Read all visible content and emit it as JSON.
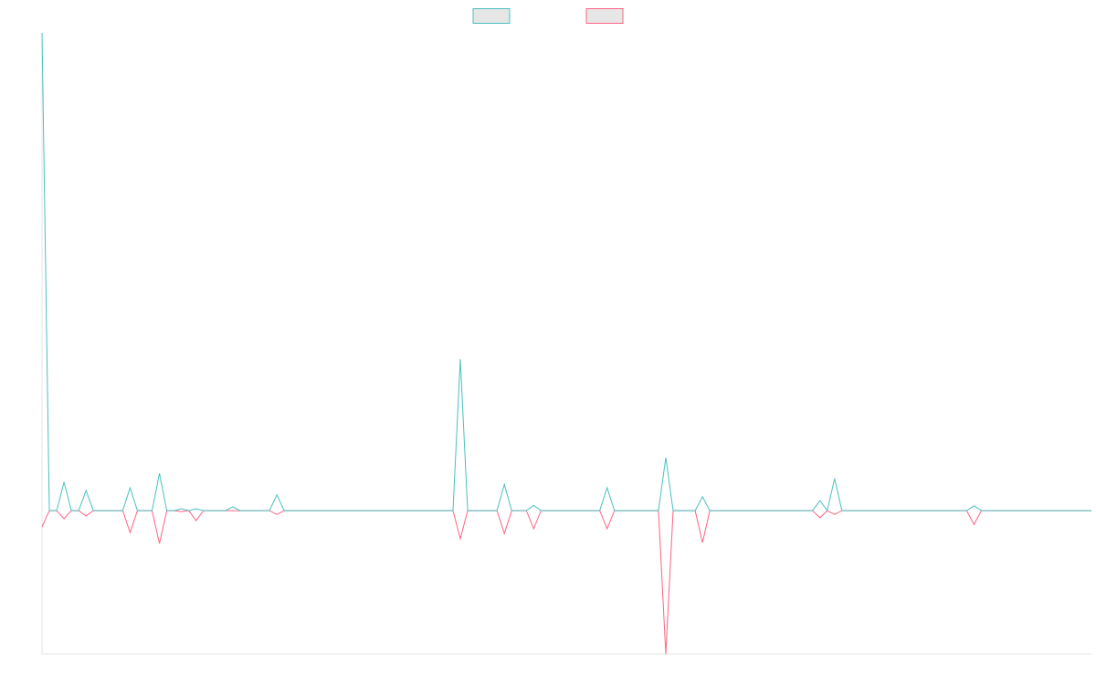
{
  "chart_data": {
    "type": "line",
    "categories": [
      null,
      null,
      null,
      null,
      null,
      null,
      null,
      null,
      null,
      null,
      null,
      null,
      null,
      null,
      null,
      null,
      null,
      null,
      null,
      null,
      null,
      null,
      null,
      null,
      null,
      null,
      null,
      null,
      null,
      null,
      null,
      null,
      null,
      null,
      null,
      null,
      null,
      null,
      null,
      null,
      null,
      null,
      null,
      null,
      null,
      null,
      null,
      null,
      null,
      null,
      null,
      null,
      null,
      null,
      null,
      null,
      null,
      null,
      null,
      null,
      null,
      null,
      null,
      null,
      null,
      null,
      null,
      null,
      null,
      null,
      null,
      null,
      null,
      null,
      null,
      null,
      null,
      null,
      null,
      null,
      null,
      null,
      null,
      null,
      null,
      null,
      null,
      null,
      null,
      null,
      null,
      null,
      null,
      null,
      null,
      null,
      null,
      null,
      null,
      null,
      null,
      null,
      null,
      null,
      null,
      null,
      null,
      null,
      null,
      null,
      null,
      null,
      null,
      null,
      null,
      null,
      null,
      null,
      null,
      null,
      null,
      null,
      null,
      null,
      null,
      null,
      null,
      null,
      null,
      null,
      null,
      null,
      null,
      null,
      null,
      null,
      null,
      null,
      null,
      null,
      null,
      null,
      null,
      null
    ],
    "series": [
      {
        "color": "#4bc0c0",
        "values": [
          100,
          0,
          0,
          6,
          0,
          0,
          4.2,
          0,
          0,
          0,
          0,
          0,
          4.8,
          0,
          0,
          0,
          7.8,
          0,
          0,
          0.4,
          0,
          0.4,
          0,
          0,
          0,
          0,
          0.8,
          0,
          0,
          0,
          0,
          0,
          3.3,
          0,
          0,
          0,
          0,
          0,
          0,
          0,
          0,
          0,
          0,
          0,
          0,
          0,
          0,
          0,
          0,
          0,
          0,
          0,
          0,
          0,
          0,
          0,
          0,
          31.7,
          0,
          0,
          0,
          0,
          0,
          5.5,
          0,
          0,
          0,
          1.1,
          0,
          0,
          0,
          0,
          0,
          0,
          0,
          0,
          0,
          4.8,
          0,
          0,
          0,
          0,
          0,
          0,
          0,
          11.1,
          0,
          0,
          0,
          0,
          2.9,
          0,
          0,
          0,
          0,
          0,
          0,
          0,
          0,
          0,
          0,
          0,
          0,
          0,
          0,
          0,
          2.1,
          0,
          6.7,
          0,
          0,
          0,
          0,
          0,
          0,
          0,
          0,
          0,
          0,
          0,
          0,
          0,
          0,
          0,
          0,
          0,
          0,
          1,
          0,
          0,
          0,
          0,
          0,
          0,
          0,
          0,
          0,
          0,
          0,
          0,
          0,
          0,
          0,
          0
        ]
      },
      {
        "color": "#ff6384",
        "values": [
          -3.4,
          0,
          0,
          -1.7,
          0,
          0,
          -1.1,
          0,
          0,
          0,
          0,
          0,
          -4.6,
          0,
          0,
          0,
          -6.9,
          0,
          0,
          -0.2,
          0,
          -2.1,
          0,
          0,
          0,
          0,
          0,
          0,
          0,
          0,
          0,
          0,
          -0.8,
          0,
          0,
          0,
          0,
          0,
          0,
          0,
          0,
          0,
          0,
          0,
          0,
          0,
          0,
          0,
          0,
          0,
          0,
          0,
          0,
          0,
          0,
          0,
          0,
          -5.9,
          0,
          0,
          0,
          0,
          0,
          -4.8,
          0,
          0,
          0,
          -3.8,
          0,
          0,
          0,
          0,
          0,
          0,
          0,
          0,
          0,
          -3.8,
          0,
          0,
          0,
          0,
          0,
          0,
          0,
          -30,
          0,
          0,
          0,
          0,
          -6.7,
          0,
          0,
          0,
          0,
          0,
          0,
          0,
          0,
          0,
          0,
          0,
          0,
          0,
          0,
          0,
          -1.5,
          0,
          -0.8,
          0,
          0,
          0,
          0,
          0,
          0,
          0,
          0,
          0,
          0,
          0,
          0,
          0,
          0,
          0,
          0,
          0,
          0,
          -2.9,
          0,
          0,
          0,
          0,
          0,
          0,
          0,
          0,
          0,
          0,
          0,
          0,
          0,
          0,
          0,
          0
        ]
      }
    ],
    "ylim": [
      -30,
      100
    ],
    "legend": "top"
  }
}
